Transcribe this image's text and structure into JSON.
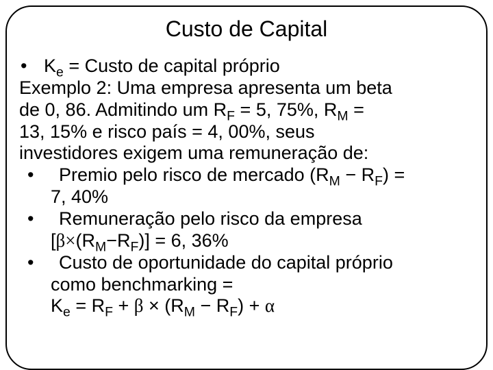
{
  "colors": {
    "text": "#000000",
    "background": "#ffffff",
    "border": "#000000"
  },
  "title": "Custo de Capital",
  "b1_pre": "K",
  "b1_sub": "e",
  "b1_post": " = Custo de capital próprio",
  "p_a": "Exemplo 2: Uma empresa apresenta um beta",
  "p_b_pre": "de 0, 86. Admitindo um R",
  "p_b_sub1": "F",
  "p_b_mid": " = 5, 75%, R",
  "p_b_sub2": "M",
  "p_b_post": " =",
  "p_c": "13, 15% e risco país = 4, 00%, seus",
  "p_d": "investidores exigem uma remuneração de:",
  "b2_pre": "Premio pelo risco de mercado (R",
  "b2_sub1": "M",
  "b2_minus": " − R",
  "b2_sub2": "F",
  "b2_post": ") =",
  "b2_line2": "7, 40%",
  "b3_line1": "Remuneração pelo risco da empresa",
  "b3_l2_open": "[",
  "b3_l2_beta": "β",
  "b3_l2_times": "×",
  "b3_l2_pre": "(R",
  "b3_l2_sub1": "M",
  "b3_l2_minus": "−R",
  "b3_l2_sub2": "F",
  "b3_l2_close": ")] = 6, 36%",
  "b4_line1": "Custo de oportunidade do capital próprio",
  "b4_line2": "como benchmarking =",
  "cut_pre": "K",
  "cut_sub1": "e",
  "cut_mid1": " = R",
  "cut_sub2": "F",
  "cut_mid2": " + ",
  "cut_beta": "β",
  "cut_mid3": " × (R",
  "cut_sub3": "M",
  "cut_mid4": " − R",
  "cut_sub4": "F",
  "cut_mid5": ") + ",
  "cut_alpha": "α"
}
